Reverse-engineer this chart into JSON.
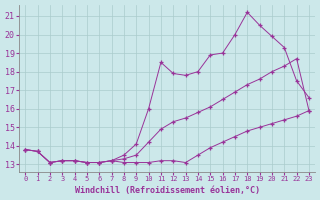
{
  "xlabel": "Windchill (Refroidissement éolien,°C)",
  "background_color": "#cce8ea",
  "grid_color": "#aacccc",
  "line_color": "#993399",
  "xlim": [
    -0.5,
    23.5
  ],
  "ylim": [
    12.6,
    21.6
  ],
  "yticks": [
    13,
    14,
    15,
    16,
    17,
    18,
    19,
    20,
    21
  ],
  "xticks": [
    0,
    1,
    2,
    3,
    4,
    5,
    6,
    7,
    8,
    9,
    10,
    11,
    12,
    13,
    14,
    15,
    16,
    17,
    18,
    19,
    20,
    21,
    22,
    23
  ],
  "line1_x": [
    0,
    1,
    2,
    3,
    4,
    5,
    6,
    7,
    8,
    9,
    10,
    11,
    12,
    13,
    14,
    15,
    16,
    17,
    18,
    19,
    20,
    21,
    22,
    23
  ],
  "line1_y": [
    13.8,
    13.7,
    13.1,
    13.2,
    13.2,
    13.1,
    13.1,
    13.2,
    13.1,
    13.1,
    13.1,
    13.2,
    13.2,
    13.1,
    13.5,
    13.9,
    14.2,
    14.5,
    14.8,
    15.0,
    15.2,
    15.4,
    15.6,
    15.9
  ],
  "line2_x": [
    0,
    1,
    2,
    3,
    4,
    5,
    6,
    7,
    8,
    9,
    10,
    11,
    12,
    13,
    14,
    15,
    16,
    17,
    18,
    19,
    20,
    21,
    22,
    23
  ],
  "line2_y": [
    13.8,
    13.7,
    13.1,
    13.2,
    13.2,
    13.1,
    13.1,
    13.2,
    13.3,
    13.5,
    14.2,
    14.9,
    15.3,
    15.5,
    15.8,
    16.1,
    16.5,
    16.9,
    17.3,
    17.6,
    18.0,
    18.3,
    18.7,
    15.9
  ],
  "line3_x": [
    0,
    1,
    2,
    3,
    4,
    5,
    6,
    7,
    8,
    9,
    10,
    11,
    12,
    13,
    14,
    15,
    16,
    17,
    18,
    19,
    20,
    21,
    22,
    23
  ],
  "line3_y": [
    13.8,
    13.7,
    13.1,
    13.2,
    13.2,
    13.1,
    13.1,
    13.2,
    13.5,
    14.1,
    16.0,
    18.5,
    17.9,
    17.8,
    18.0,
    18.9,
    19.0,
    20.0,
    21.2,
    20.5,
    19.9,
    19.3,
    17.5,
    16.6
  ]
}
